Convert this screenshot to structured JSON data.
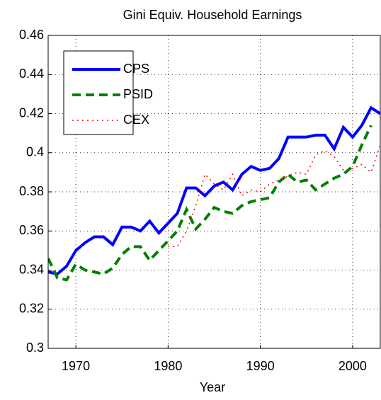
{
  "chart_data": {
    "type": "line",
    "title": "Gini Equiv. Household Earnings",
    "x_label": "Year",
    "x": [
      1967,
      1968,
      1969,
      1970,
      1971,
      1972,
      1973,
      1974,
      1975,
      1976,
      1977,
      1978,
      1979,
      1980,
      1981,
      1982,
      1983,
      1984,
      1985,
      1986,
      1987,
      1988,
      1989,
      1990,
      1991,
      1992,
      1993,
      1994,
      1995,
      1996,
      1997,
      1998,
      1999,
      2000,
      2001,
      2002,
      2003
    ],
    "series": [
      {
        "name": "CPS",
        "color": "#0000ff",
        "style": "solid",
        "values": [
          0.339,
          0.338,
          0.342,
          0.35,
          0.354,
          0.357,
          0.357,
          0.353,
          0.362,
          0.362,
          0.36,
          0.365,
          0.359,
          0.364,
          0.369,
          0.382,
          0.382,
          0.378,
          0.383,
          0.385,
          0.381,
          0.389,
          0.393,
          0.391,
          0.392,
          0.397,
          0.408,
          0.408,
          0.408,
          0.409,
          0.409,
          0.402,
          0.413,
          0.408,
          0.414,
          0.423,
          0.42
        ]
      },
      {
        "name": "PSID",
        "color": "#008000",
        "style": "dashed",
        "values": [
          0.346,
          0.336,
          0.335,
          0.343,
          0.34,
          0.339,
          0.338,
          0.341,
          0.348,
          0.352,
          0.352,
          0.345,
          0.35,
          0.355,
          0.36,
          0.371,
          0.361,
          0.366,
          0.372,
          0.37,
          0.369,
          0.373,
          0.375,
          0.376,
          0.377,
          0.385,
          0.389,
          0.385,
          0.386,
          0.381,
          0.384,
          0.387,
          0.389,
          0.393,
          0.404,
          0.414,
          null
        ]
      },
      {
        "name": "CEX",
        "color": "#ff0000",
        "style": "dotted",
        "values": [
          null,
          null,
          null,
          null,
          null,
          null,
          null,
          null,
          null,
          null,
          null,
          null,
          null,
          0.352,
          0.352,
          0.36,
          0.373,
          0.389,
          0.384,
          0.381,
          0.389,
          0.378,
          0.381,
          0.38,
          0.384,
          0.386,
          0.388,
          0.39,
          0.389,
          0.399,
          0.401,
          0.398,
          0.391,
          0.392,
          0.394,
          0.39,
          0.404
        ]
      }
    ],
    "xlim": [
      1967,
      2003
    ],
    "ylim": [
      0.3,
      0.46
    ],
    "xticks": [
      1970,
      1980,
      1990,
      2000
    ],
    "yticks": [
      0.3,
      0.32,
      0.34,
      0.36,
      0.38,
      0.4,
      0.42,
      0.44,
      0.46
    ],
    "grid": true,
    "legend": "upper left"
  }
}
